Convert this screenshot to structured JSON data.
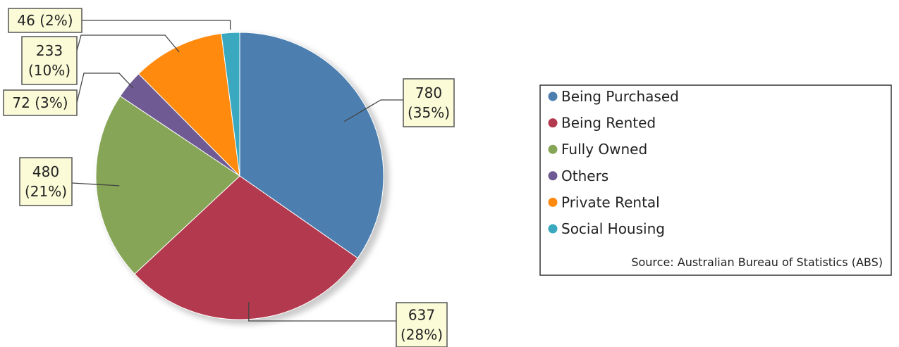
{
  "chart_data": {
    "type": "pie",
    "categories": [
      "Being Purchased",
      "Being Rented",
      "Fully Owned",
      "Others",
      "Private Rental",
      "Social Housing"
    ],
    "values": [
      780,
      637,
      480,
      72,
      233,
      46
    ],
    "percent_labels": [
      "35%",
      "28%",
      "21%",
      "3%",
      "10%",
      "2%"
    ],
    "colors": [
      "#4c7fb0",
      "#b33a4e",
      "#86a557",
      "#6f5a93",
      "#ff8a0d",
      "#3aa8bf"
    ],
    "callout_labels": [
      [
        "780",
        "(35%)"
      ],
      [
        "637",
        "(28%)"
      ],
      [
        "480",
        "(21%)"
      ],
      [
        "72 (3%)"
      ],
      [
        "233",
        "(10%)"
      ],
      [
        "46 (2%)"
      ]
    ],
    "legend_placement": "right",
    "legend_items": [
      "Being Purchased",
      "Being Rented",
      "Fully Owned",
      "Others",
      "Private Rental",
      "Social Housing"
    ],
    "source_note": "Source: Australian Bureau of Statistics (ABS)"
  }
}
